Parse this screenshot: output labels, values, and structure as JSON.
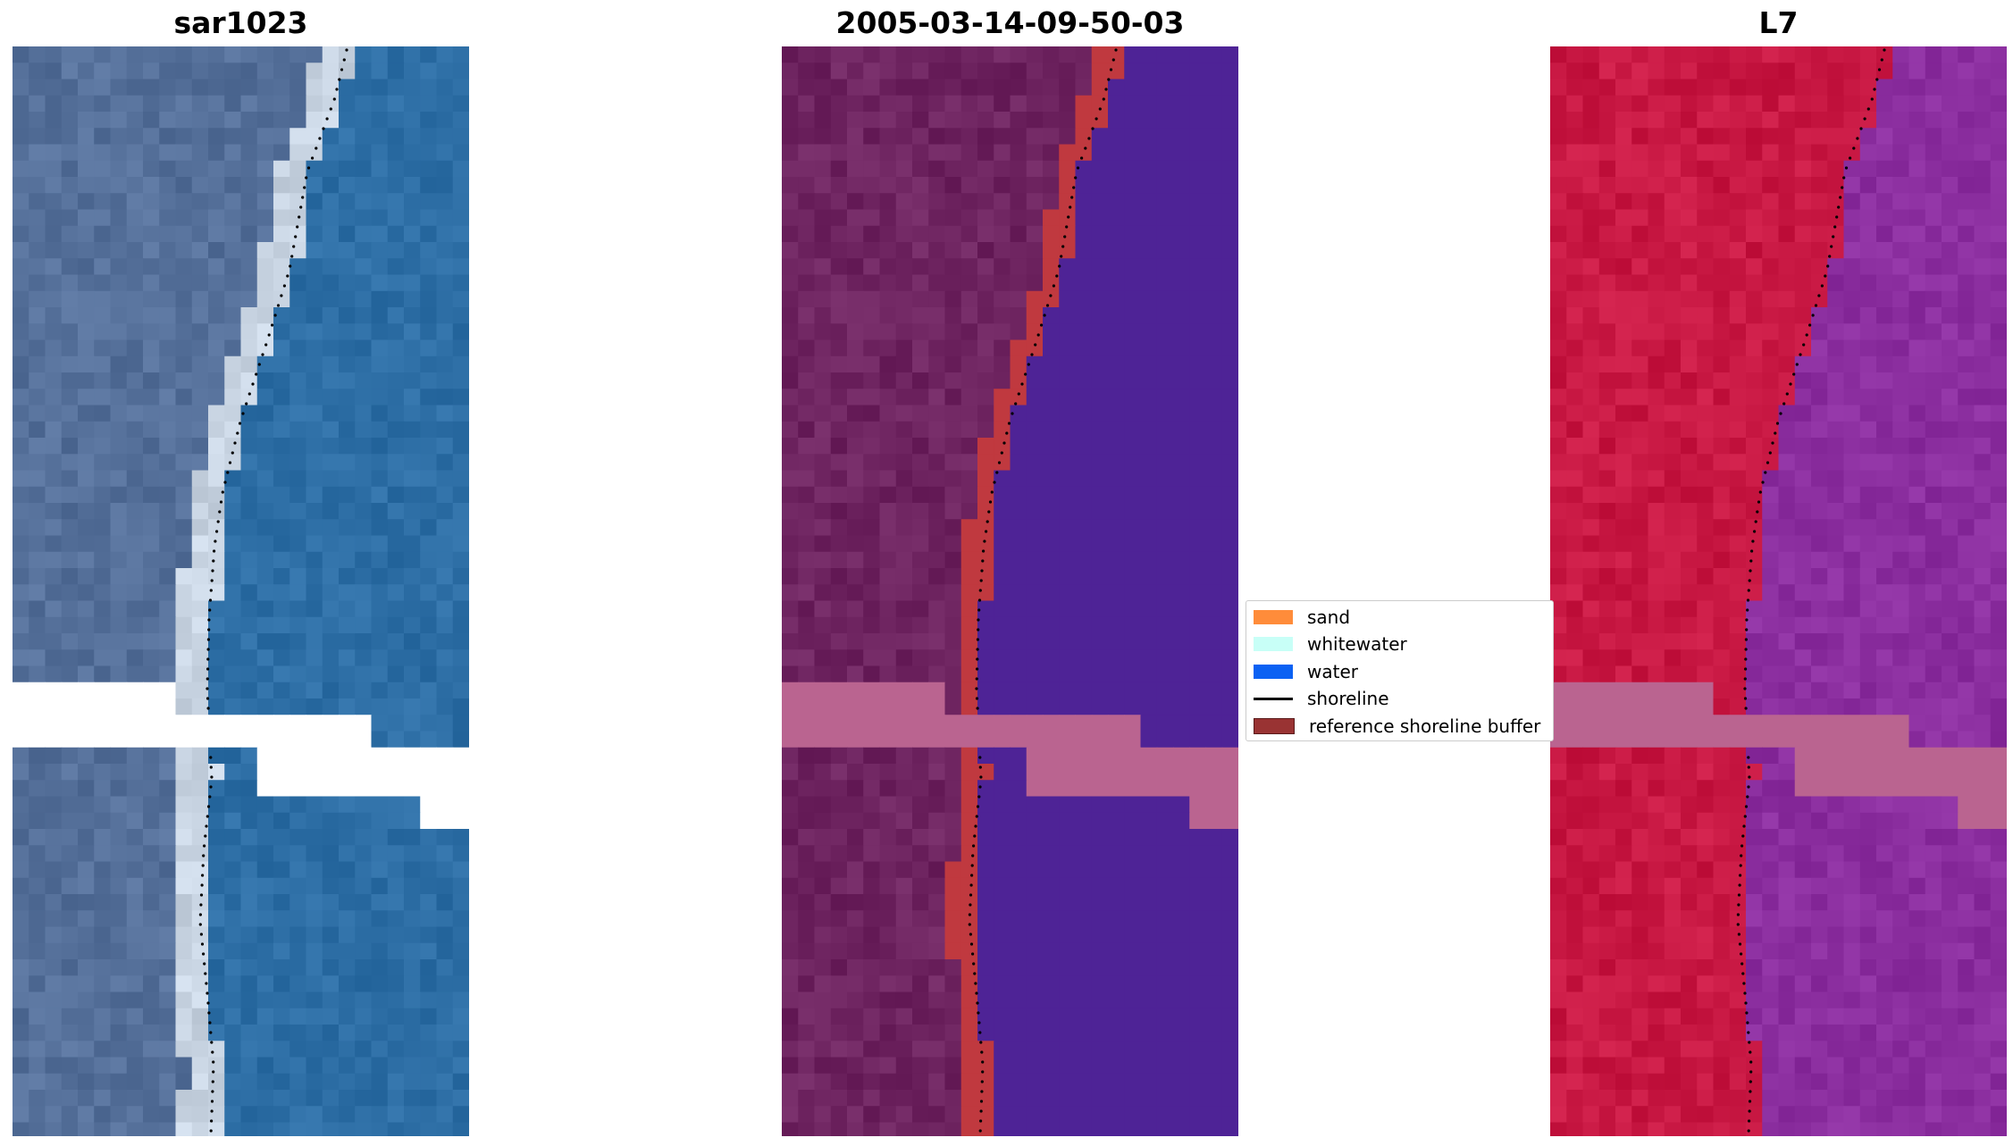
{
  "panels": [
    {
      "title": "sar1023",
      "scheme": "rgb"
    },
    {
      "title": "2005-03-14-09-50-03",
      "scheme": "classified"
    },
    {
      "title": "L7",
      "scheme": "index"
    }
  ],
  "legend": {
    "items": [
      {
        "label": "sand",
        "kind": "patch",
        "color": "#ff8c3a"
      },
      {
        "label": "whitewater",
        "kind": "patch",
        "color": "#c8fff7"
      },
      {
        "label": "water",
        "kind": "patch",
        "color": "#0b61f3"
      },
      {
        "label": "shoreline",
        "kind": "line",
        "color": "#000000"
      },
      {
        "label": "reference shoreline buffer",
        "kind": "patch",
        "color": "#993333",
        "edge": "#5a1a1a"
      }
    ]
  },
  "colors": {
    "rgb_land": "#55709a",
    "rgb_sand": "#c8d4e2",
    "rgb_water": "#2d6ea5",
    "class_land": "#6e2460",
    "class_buffer": "#c0393f",
    "class_water": "#4e2396",
    "class_gap": "#ba6490",
    "index_land": "#c81843",
    "index_water": "#8b2e9f",
    "nodata": "#ffffff",
    "shoreline": "#000000"
  }
}
